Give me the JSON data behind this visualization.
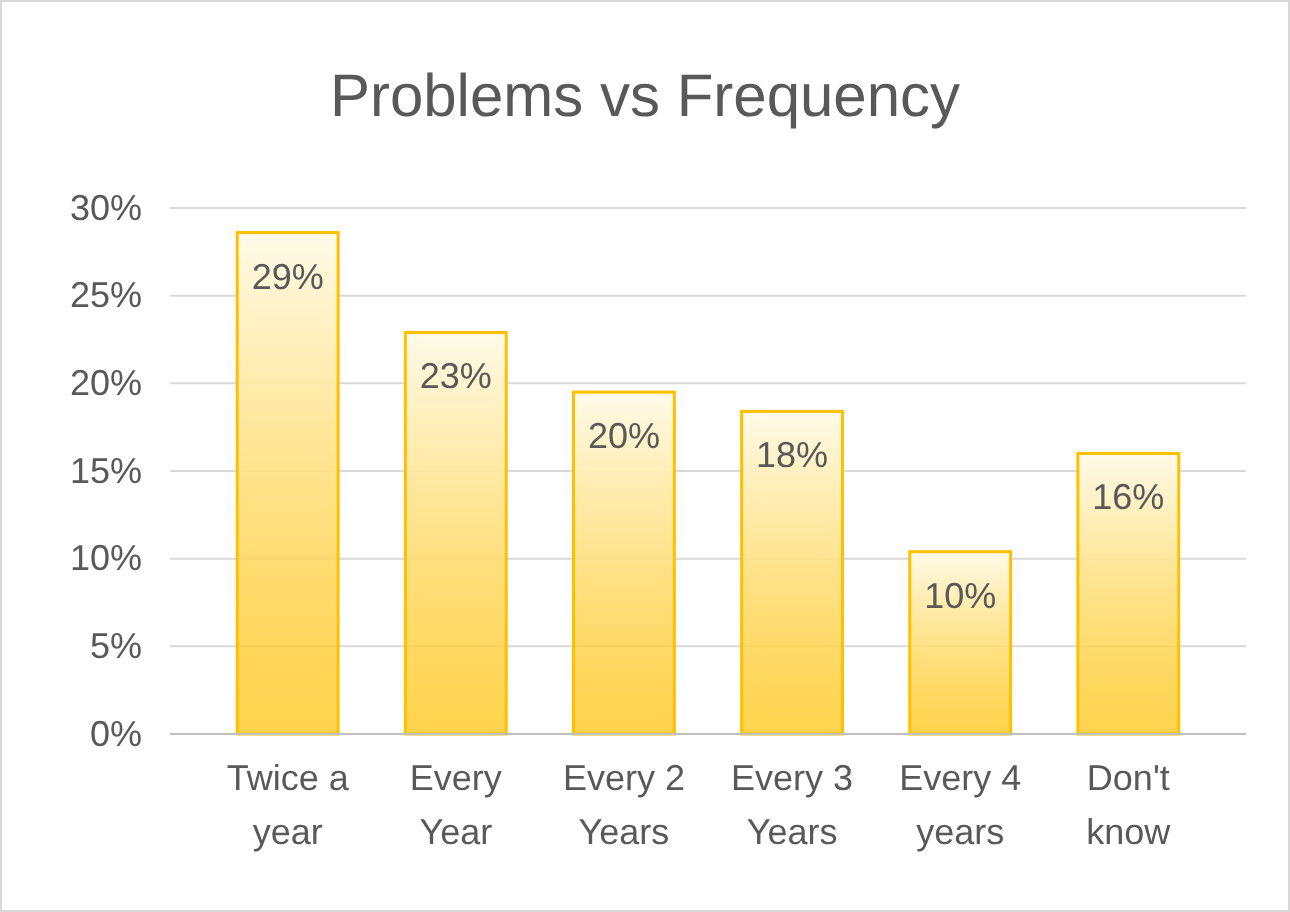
{
  "chart_data": {
    "type": "bar",
    "title": "Problems vs Frequency",
    "categories": [
      "Twice a year",
      "Every Year",
      "Every 2 Years",
      "Every 3 Years",
      "Every 4 years",
      "Don't know"
    ],
    "values": [
      28.6,
      22.9,
      19.5,
      18.4,
      10.4,
      16.0
    ],
    "value_labels": [
      "29%",
      "23%",
      "20%",
      "18%",
      "10%",
      "16%"
    ],
    "color": "#ffc000",
    "ylim": [
      0,
      30
    ],
    "yticks": [
      {
        "value": 0,
        "label": "0%"
      },
      {
        "value": 5,
        "label": "5%"
      },
      {
        "value": 10,
        "label": "10%"
      },
      {
        "value": 15,
        "label": "15%"
      },
      {
        "value": 20,
        "label": "20%"
      },
      {
        "value": 25,
        "label": "25%"
      },
      {
        "value": 30,
        "label": "30%"
      }
    ],
    "grid": "y"
  }
}
